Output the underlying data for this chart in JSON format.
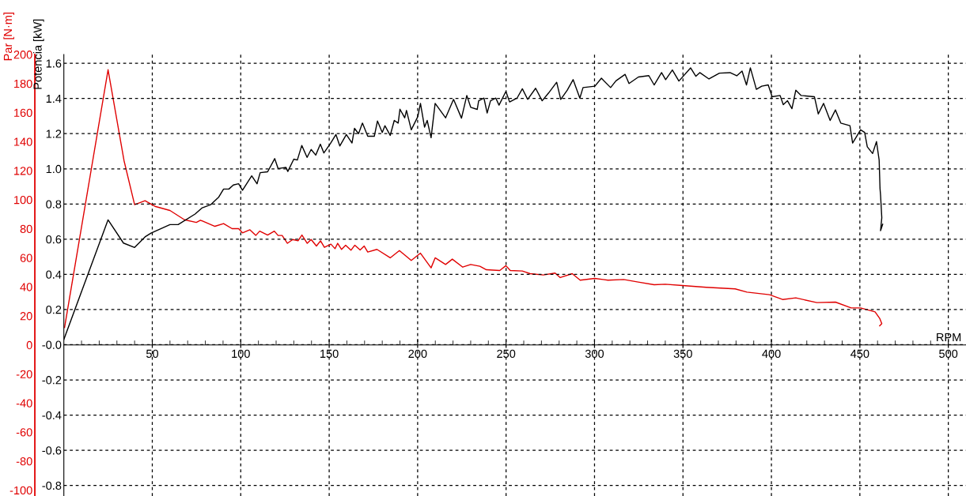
{
  "chart_data": {
    "type": "line",
    "xlabel": "RPM",
    "ylabel": "Par [N·m]",
    "y2label": "Potencia [kW]",
    "xlim": [
      0,
      510
    ],
    "xticks": [
      {
        "value": 10,
        "label": null
      },
      {
        "value": 20,
        "label": null
      },
      {
        "value": 30,
        "label": null
      },
      {
        "value": 40,
        "label": null
      },
      50,
      {
        "value": 60,
        "label": null
      },
      {
        "value": 70,
        "label": null
      },
      {
        "value": 80,
        "label": null
      },
      {
        "value": 90,
        "label": null
      },
      100,
      {
        "value": 110,
        "label": null
      },
      {
        "value": 120,
        "label": null
      },
      {
        "value": 130,
        "label": null
      },
      {
        "value": 140,
        "label": null
      },
      150,
      {
        "value": 160,
        "label": null
      },
      {
        "value": 170,
        "label": null
      },
      {
        "value": 180,
        "label": null
      },
      {
        "value": 190,
        "label": null
      },
      200,
      {
        "value": 210,
        "label": null
      },
      {
        "value": 220,
        "label": null
      },
      {
        "value": 230,
        "label": null
      },
      {
        "value": 240,
        "label": null
      },
      250,
      {
        "value": 260,
        "label": null
      },
      {
        "value": 270,
        "label": null
      },
      {
        "value": 280,
        "label": null
      },
      {
        "value": 290,
        "label": null
      },
      300,
      {
        "value": 310,
        "label": null
      },
      {
        "value": 320,
        "label": null
      },
      {
        "value": 330,
        "label": null
      },
      {
        "value": 340,
        "label": null
      },
      350,
      {
        "value": 360,
        "label": null
      },
      {
        "value": 370,
        "label": null
      },
      {
        "value": 380,
        "label": null
      },
      {
        "value": 390,
        "label": null
      },
      400,
      {
        "value": 410,
        "label": null
      },
      {
        "value": 420,
        "label": null
      },
      {
        "value": 430,
        "label": null
      },
      {
        "value": 440,
        "label": null
      },
      450,
      {
        "value": 460,
        "label": null
      },
      {
        "value": 470,
        "label": null
      },
      {
        "value": 480,
        "label": null
      },
      {
        "value": 490,
        "label": null
      },
      500
    ],
    "ylim": [
      -104,
      200
    ],
    "yticks": [
      -100,
      -80,
      -60,
      -40,
      -20,
      0,
      20,
      40,
      60,
      80,
      100,
      120,
      140,
      160,
      180,
      200
    ],
    "y2lim": [
      -0.86,
      1.65
    ],
    "y2ticks": [
      {
        "value": -0.8,
        "label": "-0.8"
      },
      {
        "value": -0.6,
        "label": "-0.6"
      },
      {
        "value": -0.4,
        "label": "-0.4"
      },
      {
        "value": -0.2,
        "label": "-0.2"
      },
      {
        "value": 0,
        "label": "-0.0"
      },
      {
        "value": 0.2,
        "label": "0.2"
      },
      {
        "value": 0.4,
        "label": "0.4"
      },
      {
        "value": 0.6,
        "label": "0.6"
      },
      {
        "value": 0.8,
        "label": "0.8"
      },
      {
        "value": 1.0,
        "label": "1.0"
      },
      {
        "value": 1.2,
        "label": "1.2"
      },
      {
        "value": 1.4,
        "label": "1.4"
      },
      {
        "value": 1.6,
        "label": "1.6"
      }
    ],
    "grid": true,
    "marker": "none",
    "line_style": "solid",
    "series": [
      {
        "color": "#e00000",
        "axis": "y",
        "x": [
          0.4,
          25,
          34,
          40,
          45.9,
          51.9,
          60,
          68.2,
          74.9,
          77.2,
          85.4,
          90.3,
          95.1,
          98.8,
          101,
          105.2,
          108.5,
          110.7,
          115.2,
          119,
          121.1,
          123.4,
          126.4,
          129.4,
          132.4,
          134.6,
          137.6,
          139.8,
          142.8,
          145.1,
          147.3,
          151,
          153.3,
          154.8,
          157,
          159.3,
          162.3,
          164.5,
          167.5,
          169.8,
          171.8,
          177,
          184.5,
          189.7,
          196.4,
          201.6,
          207.6,
          209.9,
          215.8,
          219.6,
          225.5,
          230,
          235.2,
          238.9,
          246.4,
          249.9,
          252.4,
          259.2,
          263.6,
          271.1,
          277.7,
          280.6,
          287.4,
          291.9,
          300.1,
          307.6,
          316.5,
          324.7,
          333.7,
          340,
          349.7,
          363.1,
          379.5,
          386.2,
          398.9,
          406.3,
          413.8,
          425.7,
          436.2,
          445.1,
          450.4,
          458.6,
          461.2,
          462.4,
          461.2
        ],
        "values": [
          12,
          189.5,
          127,
          96.6,
          99.3,
          95.3,
          92.6,
          86.2,
          84.4,
          85.9,
          81.7,
          83.6,
          80.1,
          80.1,
          77.2,
          79.3,
          75.4,
          78.4,
          75.7,
          78.4,
          75.4,
          75.4,
          70,
          72.6,
          71.7,
          75.7,
          70,
          72.6,
          68.1,
          71.7,
          67.2,
          69.4,
          66.3,
          70,
          65.8,
          68.7,
          65.2,
          68.7,
          65.4,
          68.1,
          64,
          65.8,
          60,
          65,
          58.2,
          63.2,
          53.1,
          60,
          55.4,
          59.1,
          53.6,
          55.4,
          54.2,
          51.8,
          51.3,
          54.6,
          51.3,
          50.9,
          49.1,
          48.2,
          49.5,
          46.4,
          49.1,
          44.6,
          45.8,
          44.6,
          45.1,
          43.3,
          41.5,
          41.8,
          40.9,
          39.7,
          38.6,
          36.4,
          34.6,
          31.3,
          32.4,
          29.2,
          29.5,
          25.5,
          25.5,
          22.8,
          18.3,
          14.7,
          13.2
        ]
      },
      {
        "color": "#000000",
        "axis": "y2",
        "x": [
          0,
          25,
          33.7,
          40,
          45.9,
          49.3,
          60,
          64.6,
          74.2,
          78,
          83,
          87.6,
          90.3,
          93.3,
          95.8,
          98.8,
          101,
          106.2,
          109.2,
          111,
          115.2,
          119.2,
          121.1,
          125.6,
          126.6,
          130,
          132,
          134.5,
          137.5,
          139.8,
          142.4,
          145,
          147,
          150.8,
          153.8,
          156,
          159.7,
          162.9,
          164.3,
          166.6,
          168.8,
          171.8,
          175.5,
          177.3,
          180,
          181.5,
          184.5,
          186.8,
          189,
          190,
          192.7,
          193.7,
          196.4,
          200.1,
          201.6,
          203.9,
          205.4,
          207.6,
          209.9,
          215.8,
          220.3,
          224.8,
          227.8,
          230,
          233.7,
          234.5,
          237.5,
          239.3,
          241.2,
          244.2,
          246,
          249.9,
          252,
          256.2,
          259.2,
          262.2,
          266.7,
          270.4,
          274.1,
          278.6,
          280.9,
          284.6,
          287.9,
          291.7,
          293.5,
          300.2,
          303.9,
          309.1,
          312.1,
          317.3,
          319.5,
          324.8,
          330.7,
          333.7,
          337.9,
          340.2,
          344,
          347.7,
          354.3,
          357.3,
          359.5,
          364.7,
          370.6,
          376.6,
          380.4,
          383.4,
          385.9,
          388.1,
          391.5,
          394.5,
          398.2,
          400.4,
          404.9,
          406.7,
          409.1,
          411.6,
          413.8,
          416.8,
          424.3,
          426.5,
          429.5,
          433.2,
          436.2,
          439.2,
          444.4,
          445.9,
          448.2,
          450.4,
          452.7,
          454.2,
          457.2,
          459.4,
          460.9,
          461.4,
          461.7,
          462.4,
          461.7,
          462.9
        ],
        "values": [
          0.03,
          0.71,
          0.578,
          0.553,
          0.613,
          0.635,
          0.683,
          0.683,
          0.743,
          0.777,
          0.796,
          0.84,
          0.885,
          0.885,
          0.908,
          0.915,
          0.878,
          0.96,
          0.915,
          0.978,
          0.983,
          1.058,
          1.002,
          1.008,
          0.985,
          1.055,
          1.05,
          1.133,
          1.065,
          1.11,
          1.078,
          1.14,
          1.09,
          1.145,
          1.195,
          1.13,
          1.195,
          1.147,
          1.23,
          1.2,
          1.26,
          1.185,
          1.185,
          1.272,
          1.207,
          1.245,
          1.19,
          1.275,
          1.26,
          1.339,
          1.29,
          1.332,
          1.222,
          1.297,
          1.372,
          1.237,
          1.275,
          1.177,
          1.372,
          1.29,
          1.395,
          1.288,
          1.417,
          1.35,
          1.338,
          1.387,
          1.402,
          1.317,
          1.387,
          1.402,
          1.362,
          1.44,
          1.38,
          1.402,
          1.455,
          1.395,
          1.458,
          1.387,
          1.432,
          1.492,
          1.395,
          1.447,
          1.507,
          1.402,
          1.462,
          1.47,
          1.515,
          1.462,
          1.5,
          1.537,
          1.485,
          1.522,
          1.53,
          1.477,
          1.547,
          1.507,
          1.562,
          1.499,
          1.574,
          1.526,
          1.547,
          1.511,
          1.544,
          1.547,
          1.529,
          1.556,
          1.477,
          1.574,
          1.452,
          1.47,
          1.477,
          1.41,
          1.417,
          1.365,
          1.387,
          1.342,
          1.447,
          1.417,
          1.41,
          1.312,
          1.372,
          1.275,
          1.335,
          1.26,
          1.245,
          1.147,
          1.185,
          1.222,
          1.207,
          1.125,
          1.087,
          1.155,
          1.05,
          0.887,
          0.85,
          0.722,
          0.648,
          0.685
        ]
      }
    ]
  }
}
